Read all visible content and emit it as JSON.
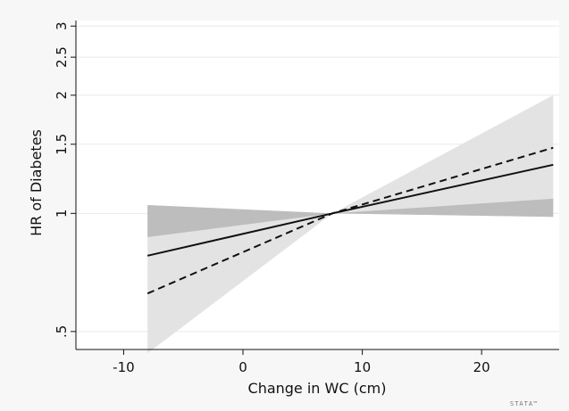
{
  "chart_data": {
    "type": "line",
    "xlabel": "Change in WC (cm)",
    "ylabel": "HR of Diabetes",
    "xlim": [
      -14,
      26.5
    ],
    "ylim": [
      0.45,
      3.1
    ],
    "y_scale": "log",
    "grid": true,
    "x_ticks": [
      {
        "value": -10,
        "label": "-10"
      },
      {
        "value": 0,
        "label": "0"
      },
      {
        "value": 10,
        "label": "10"
      },
      {
        "value": 20,
        "label": "20"
      }
    ],
    "y_ticks": [
      {
        "value": 0.5,
        "label": ".5"
      },
      {
        "value": 1,
        "label": "1"
      },
      {
        "value": 1.5,
        "label": "1.5"
      },
      {
        "value": 2,
        "label": "2"
      },
      {
        "value": 2.5,
        "label": "2.5"
      },
      {
        "value": 3,
        "label": "3"
      }
    ],
    "bands": [
      {
        "style": "light",
        "color": "#e3e3e3",
        "x": [
          -8,
          7.5,
          26
        ],
        "lower": [
          0.44,
          1.0,
          0.98
        ],
        "upper": [
          1.05,
          1.0,
          2.0
        ]
      },
      {
        "style": "dark",
        "color": "#bdbdbd",
        "x": [
          -8,
          7.5,
          26
        ],
        "lower": [
          0.87,
          1.0,
          0.98
        ],
        "upper": [
          1.05,
          1.0,
          1.09
        ]
      }
    ],
    "series": [
      {
        "line_style": "solid",
        "color": "#111111",
        "x": [
          -8,
          7.5,
          26
        ],
        "y": [
          0.78,
          1.0,
          1.33
        ]
      },
      {
        "line_style": "dashed",
        "color": "#111111",
        "x": [
          -8,
          7.5,
          26
        ],
        "y": [
          0.625,
          1.0,
          1.47
        ]
      }
    ],
    "badge": "STATA™"
  }
}
